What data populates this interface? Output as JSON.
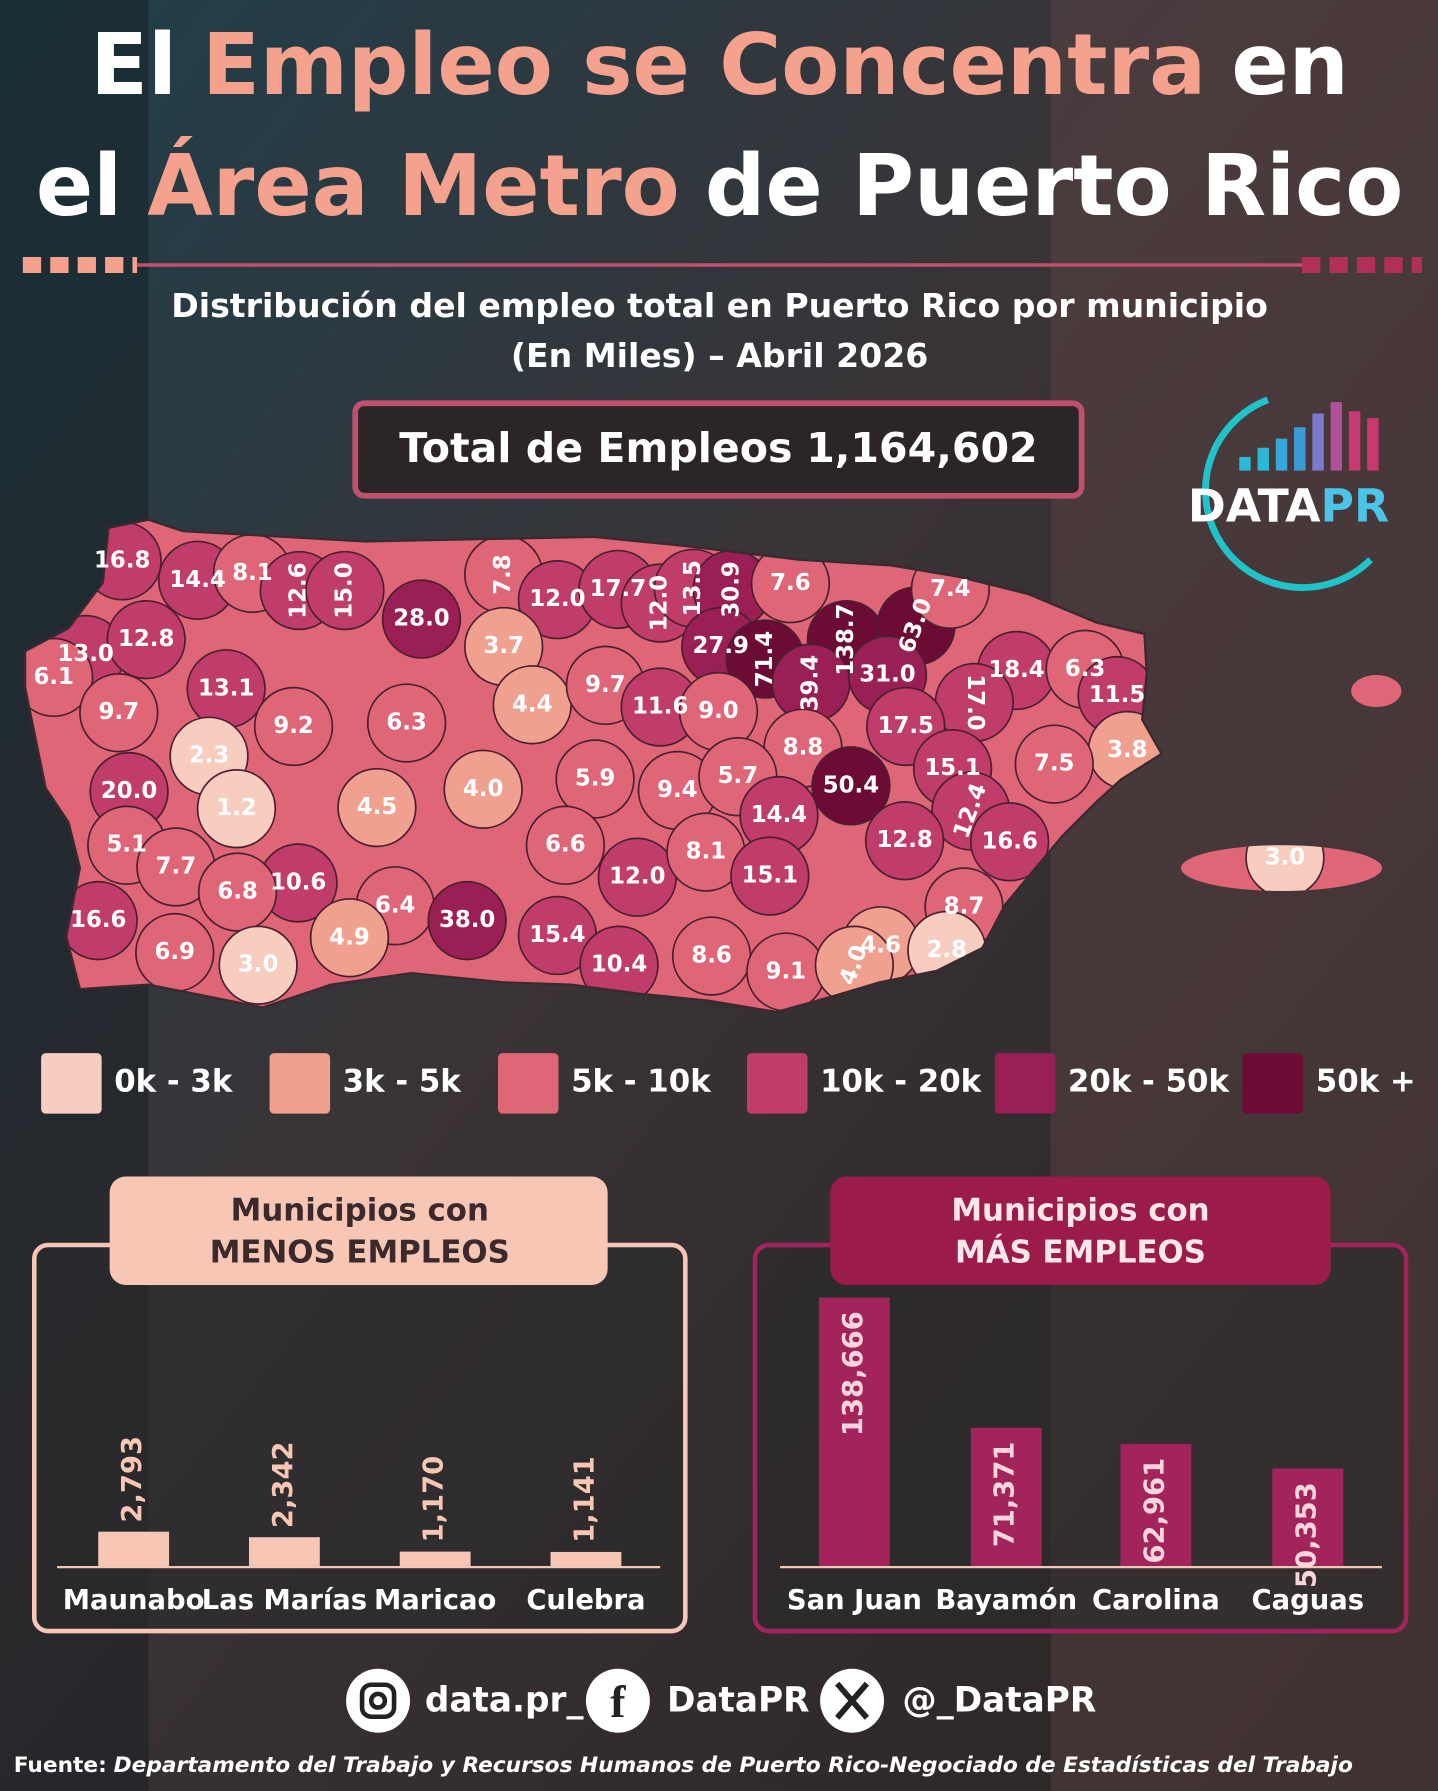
{
  "title": {
    "line1": [
      "El",
      "Empleo se Concentra",
      "en"
    ],
    "line2": [
      "el",
      "Área Metro",
      "de Puerto Rico"
    ]
  },
  "subtitle": [
    "Distribución del empleo total en Puerto Rico por municipio",
    "(En Miles) – Abril 2026"
  ],
  "total": {
    "label": "Total de Empleos",
    "value": "1,164,602"
  },
  "logo": {
    "left": "DATA",
    "right": "PR"
  },
  "map": {
    "type": "choropleth",
    "values": [
      16.8,
      14.4,
      8.1,
      12.6,
      15.0,
      28.0,
      7.8,
      12.0,
      17.7,
      12.0,
      13.5,
      30.9,
      7.6,
      138.7,
      63.0,
      7.4,
      13.0,
      6.1,
      12.8,
      3.7,
      27.9,
      71.4,
      39.4,
      31.0,
      18.4,
      6.3,
      11.5,
      17.0,
      9.7,
      13.1,
      9.2,
      6.3,
      4.4,
      9.7,
      11.6,
      9.0,
      17.5,
      3.8,
      2.3,
      8.8,
      7.5,
      15.1,
      20.0,
      1.2,
      4.5,
      4.0,
      5.9,
      9.4,
      5.7,
      50.4,
      12.4,
      14.4,
      5.1,
      7.7,
      10.6,
      6.6,
      12.0,
      8.1,
      15.1,
      12.8,
      16.6,
      3.0,
      6.8,
      6.4,
      38.0,
      16.6,
      4.9,
      15.4,
      8.7,
      6.9,
      3.0,
      10.4,
      8.6,
      9.1,
      4.6,
      2.8,
      4.0
    ],
    "value_labels": [
      "16.8",
      "14.4",
      "8.1",
      "12.6",
      "15.0",
      "28.0",
      "7.8",
      "12.0",
      "17.7",
      "12.0",
      "13.5",
      "30.9",
      "7.6",
      "138.7",
      "63.0",
      "7.4",
      "13.0",
      "6.1",
      "12.8",
      "3.7",
      "27.9",
      "71.4",
      "39.4",
      "31.0",
      "18.4",
      "6.3",
      "11.5",
      "17.0",
      "9.7",
      "13.1",
      "9.2",
      "6.3",
      "4.4",
      "9.7",
      "11.6",
      "9.0",
      "17.5",
      "3.8",
      "2.3",
      "8.8",
      "7.5",
      "15.1",
      "20.0",
      "1.2",
      "4.5",
      "4.0",
      "5.9",
      "9.4",
      "5.7",
      "50.4",
      "12.4",
      "14.4",
      "5.1",
      "7.7",
      "10.6",
      "6.6",
      "12.0",
      "8.1",
      "15.1",
      "12.8",
      "16.6",
      "3.0",
      "6.8",
      "6.4",
      "38.0",
      "16.6",
      "4.9",
      "15.4",
      "8.7",
      "6.9",
      "3.0",
      "10.4",
      "8.6",
      "9.1",
      "4.6",
      "2.8",
      "4.0"
    ],
    "legend": [
      {
        "label": "0k - 3k",
        "range": [
          0,
          3
        ],
        "color": "#f7cdbf"
      },
      {
        "label": "3k - 5k",
        "range": [
          3,
          5
        ],
        "color": "#efa08f"
      },
      {
        "label": "5k - 10k",
        "range": [
          5,
          10
        ],
        "color": "#de6677"
      },
      {
        "label": "10k - 20k",
        "range": [
          10,
          20
        ],
        "color": "#c03c6a"
      },
      {
        "label": "20k - 50k",
        "range": [
          20,
          50
        ],
        "color": "#9a1f55"
      },
      {
        "label": "50k +",
        "range": [
          50,
          null
        ],
        "color": "#6c0c35"
      }
    ]
  },
  "chart_data": [
    {
      "type": "bar",
      "title": [
        "Municipios con",
        "MENOS EMPLEOS"
      ],
      "categories": [
        "Maunabo",
        "Las Marías",
        "Maricao",
        "Culebra"
      ],
      "values": [
        2793,
        2342,
        1170,
        1141
      ],
      "value_labels": [
        "2,793",
        "2,342",
        "1,170",
        "1,141"
      ],
      "color": "#f8c6b5"
    },
    {
      "type": "bar",
      "title": [
        "Municipios con",
        "MÁS EMPLEOS"
      ],
      "categories": [
        "San Juan",
        "Bayamón",
        "Carolina",
        "Caguas"
      ],
      "values": [
        138666,
        71371,
        62961,
        50353
      ],
      "value_labels": [
        "138,666",
        "71,371",
        "62,961",
        "50,353"
      ],
      "color": "#a2245b"
    }
  ],
  "social": {
    "instagram": "data.pr_",
    "facebook": "DataPR",
    "x": "@_DataPR"
  },
  "source": {
    "label": "Fuente:",
    "text": "Departamento del Trabajo y Recursos Humanos de Puerto Rico-Negociado de Estadísticas del Trabajo"
  }
}
